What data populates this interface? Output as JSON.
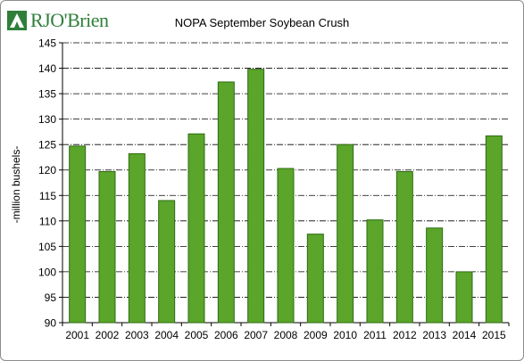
{
  "brand": {
    "logo_text": "RJO'Brien",
    "color": "#2f7f3a"
  },
  "chart_data": {
    "type": "bar",
    "title": "NOPA September Soybean Crush",
    "xlabel": "",
    "ylabel": "-million bushels-",
    "categories": [
      "2001",
      "2002",
      "2003",
      "2004",
      "2005",
      "2006",
      "2007",
      "2008",
      "2009",
      "2010",
      "2011",
      "2012",
      "2013",
      "2014",
      "2015"
    ],
    "values": [
      124.7,
      119.7,
      123.2,
      114.0,
      127.1,
      137.3,
      139.8,
      120.3,
      107.4,
      125.0,
      110.2,
      119.7,
      108.6,
      100.0,
      126.7
    ],
    "ylim": [
      90,
      145
    ],
    "yticks": [
      90,
      95,
      100,
      105,
      110,
      115,
      120,
      125,
      130,
      135,
      140,
      145
    ],
    "grid": true,
    "legend": "none",
    "bar_color": "#5aa52a",
    "bar_edge_color": "#2e6b12"
  }
}
